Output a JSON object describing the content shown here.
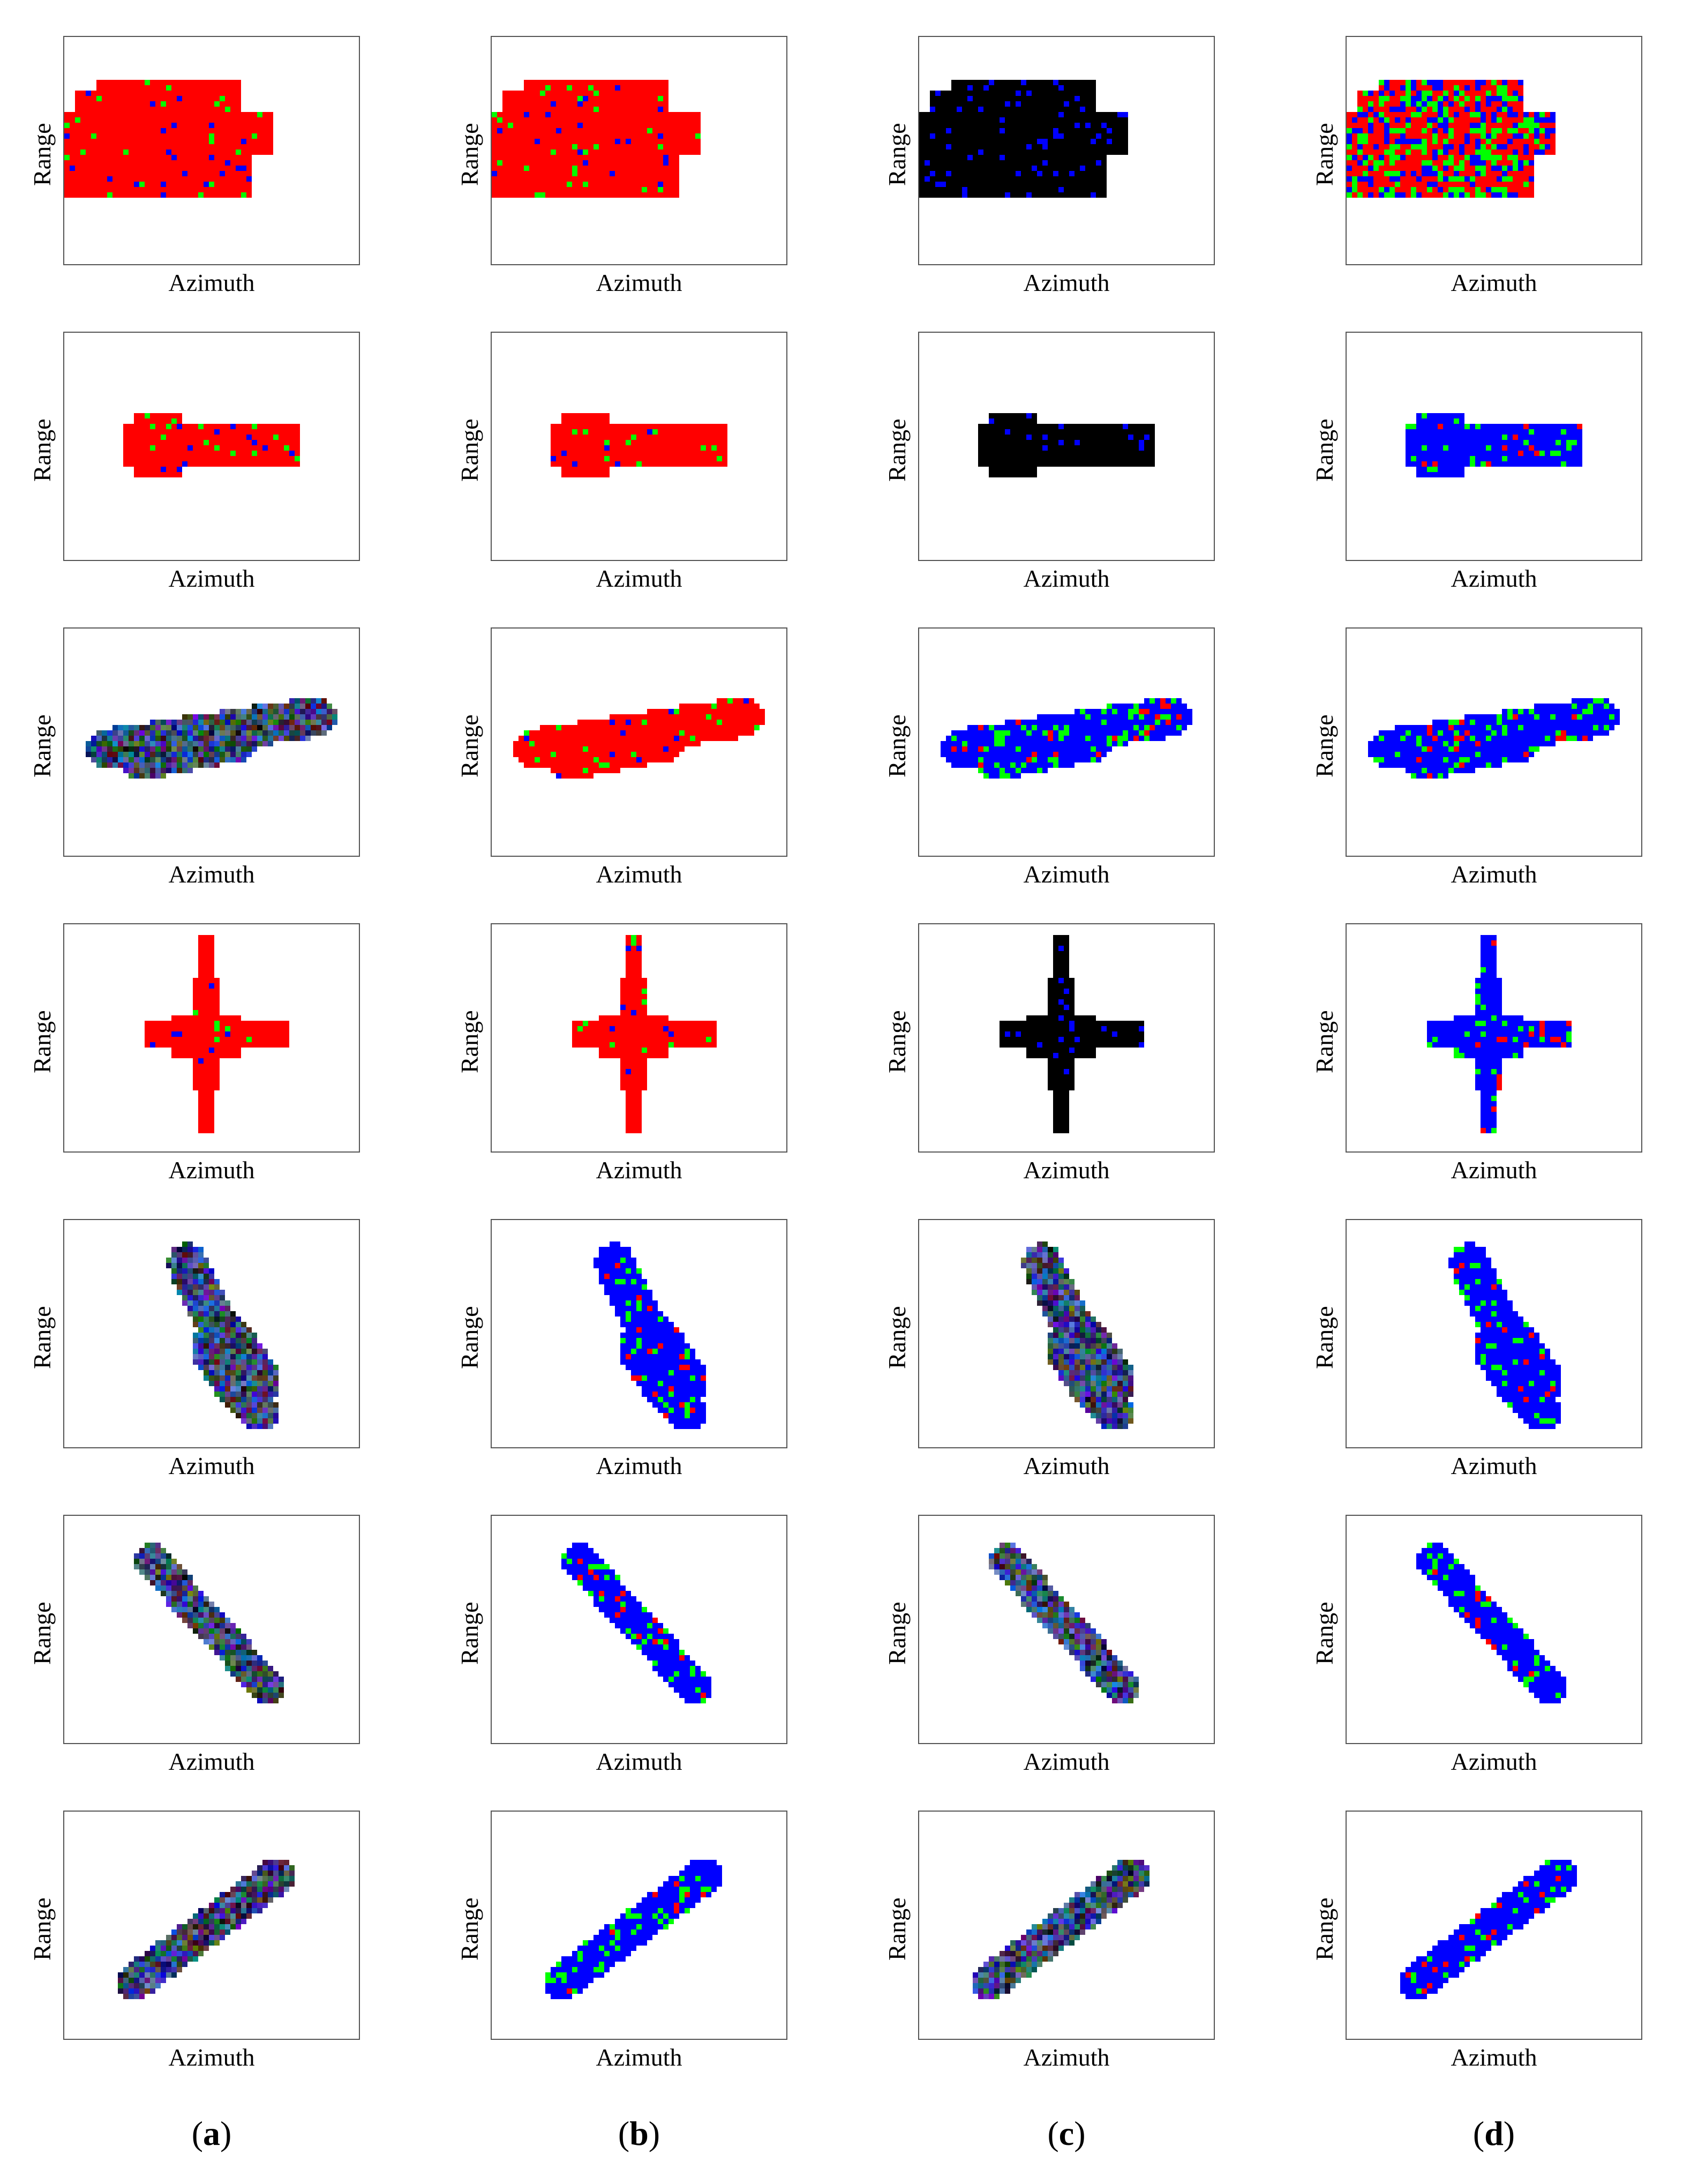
{
  "axis_labels": {
    "x": "Azimuth",
    "y": "Range"
  },
  "columns": [
    {
      "open": "(",
      "letter": "a",
      "close": ")"
    },
    {
      "open": "(",
      "letter": "b",
      "close": ")"
    },
    {
      "open": "(",
      "letter": "c",
      "close": ")"
    },
    {
      "open": "(",
      "letter": "d",
      "close": ")"
    }
  ],
  "colors": {
    "red": "#ff0000",
    "green": "#00ff00",
    "blue": "#0000ff",
    "black": "#000000",
    "border": "#555555"
  },
  "chart_data": {
    "type": "heatmap",
    "grid": {
      "rows": 7,
      "cols": 4
    },
    "xlabel": "Azimuth",
    "ylabel": "Range",
    "rows": [
      {
        "shape": "box",
        "dominant": [
          "red",
          "red",
          "black",
          "mixed"
        ]
      },
      {
        "shape": "bar",
        "dominant": [
          "red",
          "red",
          "black",
          "blue"
        ]
      },
      {
        "shape": "diag-up",
        "dominant": [
          "mixed",
          "red",
          "blue",
          "blue"
        ]
      },
      {
        "shape": "cross",
        "dominant": [
          "red",
          "red",
          "black",
          "blue"
        ]
      },
      {
        "shape": "slope-down-wide",
        "dominant": [
          "mixed",
          "blue",
          "mixed",
          "blue"
        ]
      },
      {
        "shape": "slope-down",
        "dominant": [
          "mixed",
          "blue",
          "mixed",
          "blue"
        ]
      },
      {
        "shape": "slope-up",
        "dominant": [
          "mixed",
          "blue",
          "mixed",
          "blue"
        ]
      }
    ]
  }
}
